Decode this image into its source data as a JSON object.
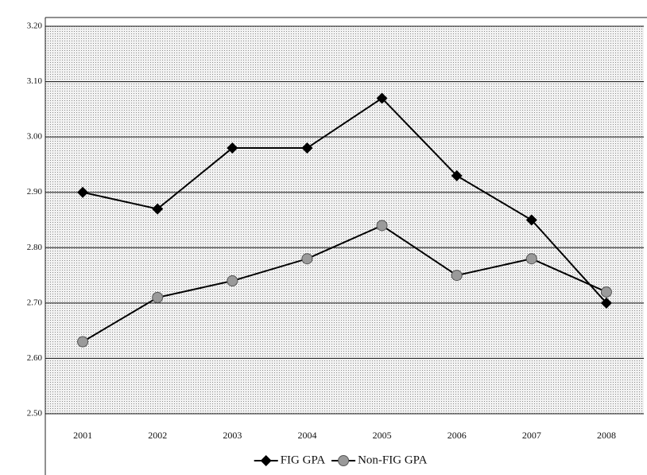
{
  "chart_data": {
    "type": "line",
    "categories": [
      "2001",
      "2002",
      "2003",
      "2004",
      "2005",
      "2006",
      "2007",
      "2008"
    ],
    "series": [
      {
        "name": "FIG GPA",
        "color": "#000000",
        "marker": "diamond",
        "marker_fill": "#000000",
        "values": [
          2.9,
          2.87,
          2.98,
          2.98,
          3.07,
          2.93,
          2.85,
          2.7
        ]
      },
      {
        "name": "Non-FIG GPA",
        "color": "#000000",
        "marker": "circle",
        "marker_fill": "#9a9a9a",
        "values": [
          2.63,
          2.71,
          2.74,
          2.78,
          2.84,
          2.75,
          2.78,
          2.72
        ]
      }
    ],
    "ylim": [
      2.5,
      3.2
    ],
    "yticks": [
      {
        "value": 2.5,
        "label": "2.50"
      },
      {
        "value": 2.6,
        "label": "2.60"
      },
      {
        "value": 2.7,
        "label": "2.70"
      },
      {
        "value": 2.8,
        "label": "2.80"
      },
      {
        "value": 2.9,
        "label": "2.90"
      },
      {
        "value": 3.0,
        "label": "3.00"
      },
      {
        "value": 3.1,
        "label": "3.10"
      },
      {
        "value": 3.2,
        "label": "3.20"
      }
    ],
    "grid": true,
    "legend": "bottom"
  }
}
